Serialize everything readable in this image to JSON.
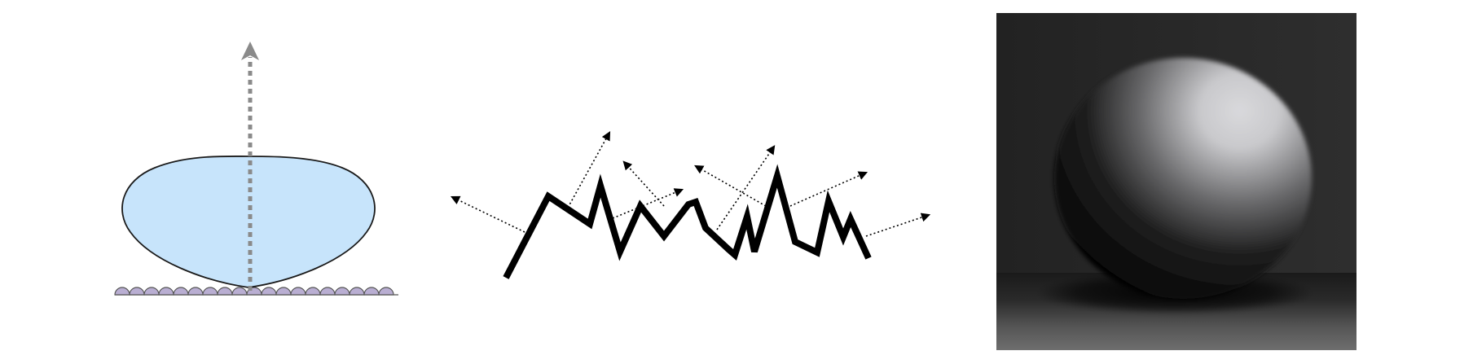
{
  "colors": {
    "background": "#ffffff",
    "lobe_fill": "#c7e4fb",
    "lobe_stroke": "#1a1a1a",
    "normal_arrow": "#8a8a8a",
    "bump_fill": "#b9aed2",
    "bump_stroke": "#555555",
    "surface_line": "#000000",
    "ray_color": "#000000",
    "render_background_top": "#262626",
    "render_background_bottom": "#1a1a1a",
    "floor_light": "#6b6b6b",
    "sphere_highlight": "#d7d7d9",
    "sphere_shadow": "#0a0a0a"
  },
  "panels": [
    {
      "name": "specular-lobe-diagram",
      "icons": [
        "surface-normal-arrow",
        "microfacet-bumps",
        "reflection-lobe"
      ]
    },
    {
      "name": "rough-surface-scattering-diagram",
      "icons": [
        "rough-surface-profile",
        "scattered-ray-arrows"
      ]
    },
    {
      "name": "rendered-sphere-image",
      "icons": [
        "sphere",
        "floor-shadow"
      ]
    }
  ]
}
